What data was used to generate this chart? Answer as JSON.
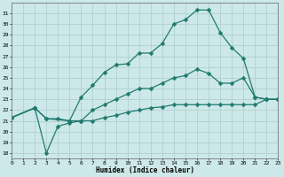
{
  "xlabel": "Humidex (Indice chaleur)",
  "bg_color": "#cde8e8",
  "grid_color": "#b0d0d0",
  "line_color": "#1e7b6e",
  "markersize": 2.5,
  "linewidth": 0.9,
  "curves": [
    {
      "x": [
        0,
        2,
        3,
        5,
        6,
        7,
        8,
        9,
        10,
        11,
        12,
        13,
        14,
        15,
        16,
        17,
        18,
        19,
        20,
        21,
        22,
        23
      ],
      "y": [
        21.3,
        22.2,
        21.2,
        21.0,
        23.2,
        24.3,
        25.5,
        26.2,
        26.3,
        27.3,
        27.3,
        28.2,
        30.0,
        30.4,
        31.3,
        31.3,
        29.2,
        27.8,
        26.8,
        23.2,
        23.0,
        23.0
      ]
    },
    {
      "x": [
        0,
        2,
        3,
        4,
        5,
        6,
        7,
        8,
        9,
        10,
        11,
        12,
        13,
        14,
        15,
        16,
        17,
        18,
        19,
        20,
        21,
        22,
        23
      ],
      "y": [
        21.3,
        22.2,
        21.2,
        21.2,
        21.0,
        21.0,
        22.0,
        22.5,
        23.0,
        23.5,
        24.0,
        24.0,
        24.5,
        25.0,
        25.2,
        25.8,
        25.4,
        24.5,
        24.5,
        25.0,
        23.2,
        23.0,
        23.0
      ]
    },
    {
      "x": [
        0,
        2,
        3,
        4,
        5,
        6,
        7,
        8,
        9,
        10,
        11,
        12,
        13,
        14,
        15,
        16,
        17,
        18,
        19,
        20,
        21,
        22,
        23
      ],
      "y": [
        21.3,
        22.2,
        18.0,
        20.5,
        20.8,
        21.0,
        21.0,
        21.3,
        21.5,
        21.8,
        22.0,
        22.2,
        22.3,
        22.5,
        22.5,
        22.5,
        22.5,
        22.5,
        22.5,
        22.5,
        22.5,
        23.0,
        23.0
      ]
    }
  ],
  "xlim": [
    0,
    23
  ],
  "ylim": [
    17.5,
    32.0
  ],
  "yticks": [
    18,
    19,
    20,
    21,
    22,
    23,
    24,
    25,
    26,
    27,
    28,
    29,
    30,
    31
  ],
  "xticks": [
    0,
    1,
    2,
    3,
    4,
    5,
    6,
    7,
    8,
    9,
    10,
    11,
    12,
    13,
    14,
    15,
    16,
    17,
    18,
    19,
    20,
    21,
    22,
    23
  ]
}
